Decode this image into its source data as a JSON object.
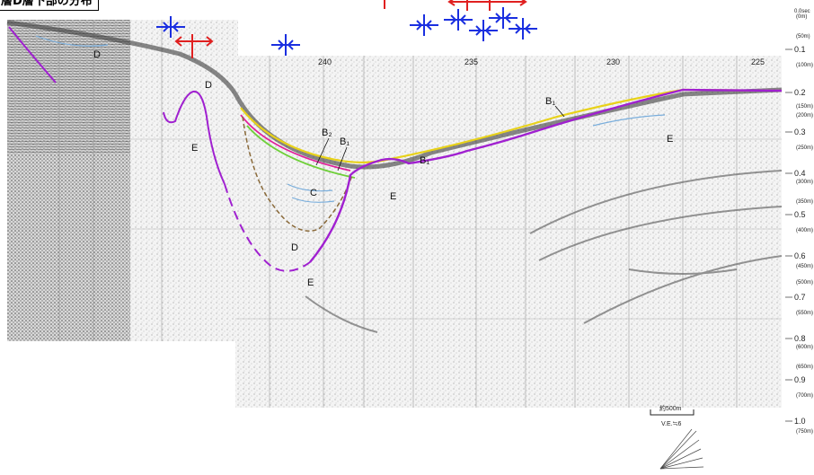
{
  "title": "層D層下部の分布",
  "distance_ticks": [
    "240",
    "235",
    "230",
    "225"
  ],
  "time_ticks": [
    "0.1",
    "0.2",
    "0.3",
    "0.4",
    "0.5",
    "0.6",
    "0.7",
    "0.8",
    "0.9",
    "1.0"
  ],
  "depth_ticks": [
    "(50m)",
    "(100m)",
    "(150m)",
    "(200m)",
    "(250m)",
    "(300m)",
    "(350m)",
    "(400m)",
    "(450m)",
    "(500m)",
    "(550m)",
    "(600m)",
    "(650m)",
    "(700m)",
    "(750m)"
  ],
  "top_depth_label": "(0m)",
  "units": {
    "top_label": "0.0sec"
  },
  "unit_labels": [
    {
      "id": "D1",
      "text": "D"
    },
    {
      "id": "D2",
      "text": "D"
    },
    {
      "id": "D3",
      "text": "D"
    },
    {
      "id": "E1",
      "text": "E"
    },
    {
      "id": "E2",
      "text": "E"
    },
    {
      "id": "E3",
      "text": "E"
    },
    {
      "id": "E4",
      "text": "E"
    },
    {
      "id": "C1",
      "text": "C"
    },
    {
      "id": "B2",
      "text": "B₂"
    },
    {
      "id": "B1a",
      "text": "B₁"
    },
    {
      "id": "B1b",
      "text": "B₁"
    },
    {
      "id": "B1c",
      "text": "B₁"
    }
  ],
  "scale_bar": {
    "label": "約500m",
    "ve": "V.E.≒6"
  },
  "colors": {
    "purple": "#a020d0",
    "yellow": "#e8d21a",
    "green": "#6fcf3a",
    "magenta": "#e0209a",
    "brown": "#8a6a3a",
    "blue": "#1a2fe0",
    "red": "#e02020",
    "lightblue": "#7aaedc"
  },
  "symbols": {
    "anticline": "anticline-axis-symbol",
    "fault_arrow": "red-double-arrow-symbol"
  }
}
